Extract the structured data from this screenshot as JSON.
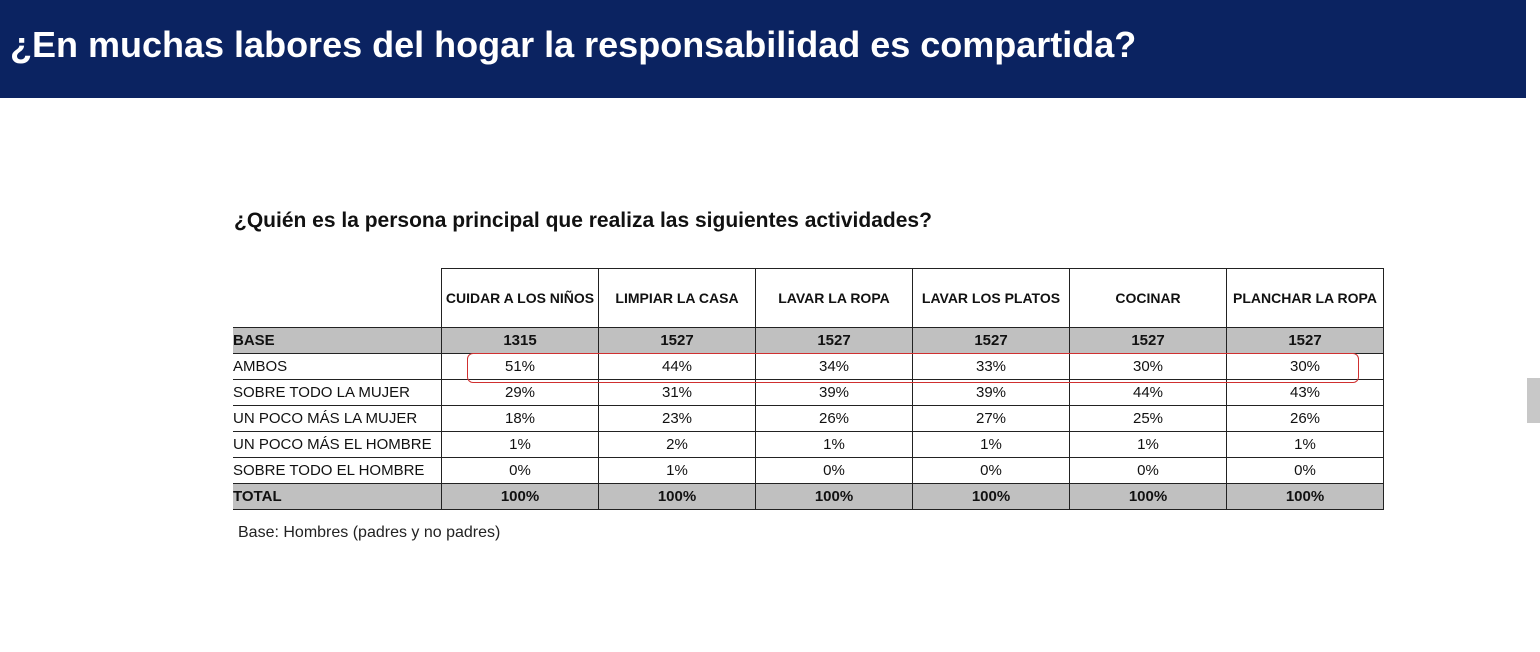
{
  "header": {
    "title": "¿En muchas labores del hogar la responsabilidad es compartida?"
  },
  "subtitle": "¿Quién es la persona principal que realiza las siguientes actividades?",
  "table": {
    "columns": [
      "CUIDAR A LOS NIÑOS",
      "LIMPIAR LA CASA",
      "LAVAR LA ROPA",
      "LAVAR LOS PLATOS",
      "COCINAR",
      "PLANCHAR LA ROPA"
    ],
    "rows": [
      {
        "label": "BASE",
        "cells": [
          "1315",
          "1527",
          "1527",
          "1527",
          "1527",
          "1527"
        ]
      },
      {
        "label": "AMBOS",
        "cells": [
          "51%",
          "44%",
          "34%",
          "33%",
          "30%",
          "30%"
        ]
      },
      {
        "label": "SOBRE TODO LA MUJER",
        "cells": [
          "29%",
          "31%",
          "39%",
          "39%",
          "44%",
          "43%"
        ]
      },
      {
        "label": "UN POCO MÁS LA MUJER",
        "cells": [
          "18%",
          "23%",
          "26%",
          "27%",
          "25%",
          "26%"
        ]
      },
      {
        "label": "UN POCO MÁS EL HOMBRE",
        "cells": [
          "1%",
          "2%",
          "1%",
          "1%",
          "1%",
          "1%"
        ]
      },
      {
        "label": "SOBRE TODO EL HOMBRE",
        "cells": [
          "0%",
          "1%",
          "0%",
          "0%",
          "0%",
          "0%"
        ]
      },
      {
        "label": "TOTAL",
        "cells": [
          "100%",
          "100%",
          "100%",
          "100%",
          "100%",
          "100%"
        ]
      }
    ]
  },
  "note": "Base: Hombres (padres y no padres)"
}
